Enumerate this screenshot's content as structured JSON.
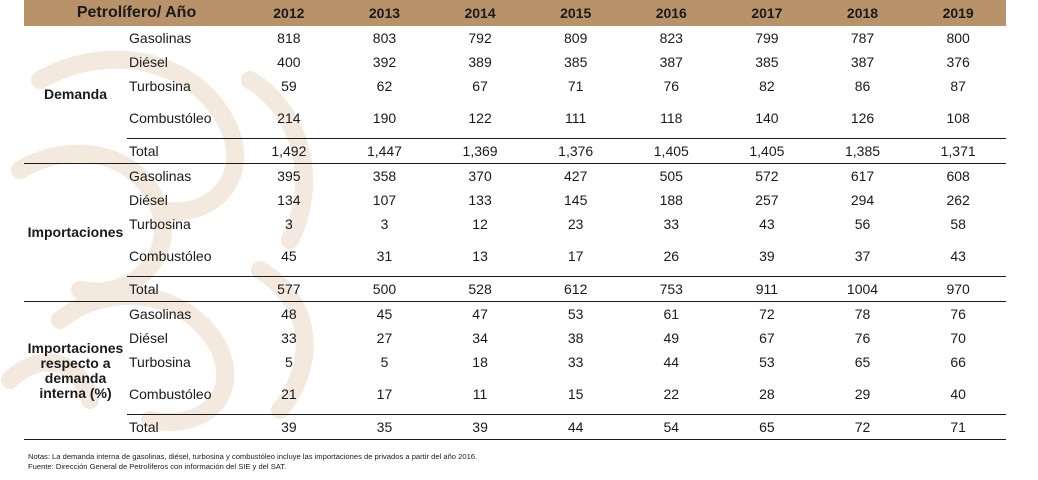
{
  "header": {
    "title": "Petrolífero/ Año",
    "years": [
      "2012",
      "2013",
      "2014",
      "2015",
      "2016",
      "2017",
      "2018",
      "2019"
    ]
  },
  "sections": [
    {
      "name": "Demanda",
      "rows": [
        {
          "label": "Gasolinas",
          "values": [
            "818",
            "803",
            "792",
            "809",
            "823",
            "799",
            "787",
            "800"
          ]
        },
        {
          "label": "Diésel",
          "values": [
            "400",
            "392",
            "389",
            "385",
            "387",
            "385",
            "387",
            "376"
          ]
        },
        {
          "label": "Turbosina",
          "values": [
            "59",
            "62",
            "67",
            "71",
            "76",
            "82",
            "86",
            "87"
          ]
        },
        {
          "label": "Combustóleo",
          "values": [
            "214",
            "190",
            "122",
            "111",
            "118",
            "140",
            "126",
            "108"
          ]
        },
        {
          "label": "Total",
          "values": [
            "1,492",
            "1,447",
            "1,369",
            "1,376",
            "1,405",
            "1,405",
            "1,385",
            "1,371"
          ]
        }
      ]
    },
    {
      "name": "Importaciones",
      "rows": [
        {
          "label": "Gasolinas",
          "values": [
            "395",
            "358",
            "370",
            "427",
            "505",
            "572",
            "617",
            "608"
          ]
        },
        {
          "label": "Diésel",
          "values": [
            "134",
            "107",
            "133",
            "145",
            "188",
            "257",
            "294",
            "262"
          ]
        },
        {
          "label": "Turbosina",
          "values": [
            "3",
            "3",
            "12",
            "23",
            "33",
            "43",
            "56",
            "58"
          ]
        },
        {
          "label": "Combustóleo",
          "values": [
            "45",
            "31",
            "13",
            "17",
            "26",
            "39",
            "37",
            "43"
          ]
        },
        {
          "label": "Total",
          "values": [
            "577",
            "500",
            "528",
            "612",
            "753",
            "911",
            "1004",
            "970"
          ]
        }
      ]
    },
    {
      "name": "Importaciones respecto a demanda interna (%)",
      "rows": [
        {
          "label": "Gasolinas",
          "values": [
            "48",
            "45",
            "47",
            "53",
            "61",
            "72",
            "78",
            "76"
          ]
        },
        {
          "label": "Diésel",
          "values": [
            "33",
            "27",
            "34",
            "38",
            "49",
            "67",
            "76",
            "70"
          ]
        },
        {
          "label": "Turbosina",
          "values": [
            "5",
            "5",
            "18",
            "33",
            "44",
            "53",
            "65",
            "66"
          ]
        },
        {
          "label": "Combustóleo",
          "values": [
            "21",
            "17",
            "11",
            "15",
            "22",
            "28",
            "29",
            "40"
          ]
        },
        {
          "label": "Total",
          "values": [
            "39",
            "35",
            "39",
            "44",
            "54",
            "65",
            "72",
            "71"
          ]
        }
      ]
    }
  ],
  "notes": {
    "line1": "Notas: La demanda interna de gasolinas, diésel, turbosina y combustóleo incluye las importaciones de privados a partir del año 2016.",
    "line2": "Fuente: Dirección General de Petrolíferos con información del SIE y del SAT."
  },
  "colors": {
    "header_bg": "#b8936a",
    "watermark": "#f3e9de"
  }
}
